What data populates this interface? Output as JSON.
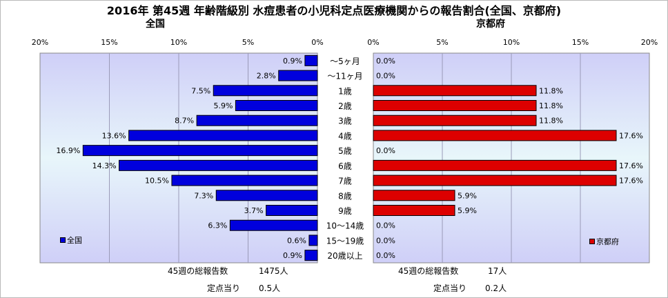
{
  "title": "2016年 第45週 年齢階級別 水痘患者の小児科定点医療機関からの報告割合(全国、京都府)",
  "chart_data": [
    {
      "type": "bar",
      "title": "全国",
      "orientation": "horizontal",
      "direction": "right-to-left",
      "categories": [
        "～5ヶ月",
        "～11ヶ月",
        "1歳",
        "2歳",
        "3歳",
        "4歳",
        "5歳",
        "6歳",
        "7歳",
        "8歳",
        "9歳",
        "10～14歳",
        "15～19歳",
        "20歳以上"
      ],
      "series": [
        {
          "name": "全国",
          "color": "#0000dd",
          "values": [
            0.9,
            2.8,
            7.5,
            5.9,
            8.7,
            13.6,
            16.9,
            14.3,
            10.5,
            7.3,
            3.7,
            6.3,
            0.6,
            0.9
          ],
          "labels": [
            "0.9%",
            "2.8%",
            "7.5%",
            "5.9%",
            "8.7%",
            "13.6%",
            "16.9%",
            "14.3%",
            "10.5%",
            "7.3%",
            "3.7%",
            "6.3%",
            "0.6%",
            "0.9%"
          ]
        }
      ],
      "xlim": [
        0,
        20
      ],
      "ticks": [
        "0%",
        "5%",
        "10%",
        "15%",
        "20%"
      ],
      "grid": true,
      "legend_position": "bottom-left"
    },
    {
      "type": "bar",
      "title": "京都府",
      "orientation": "horizontal",
      "direction": "left-to-right",
      "categories": [
        "～5ヶ月",
        "～11ヶ月",
        "1歳",
        "2歳",
        "3歳",
        "4歳",
        "5歳",
        "6歳",
        "7歳",
        "8歳",
        "9歳",
        "10～14歳",
        "15～19歳",
        "20歳以上"
      ],
      "series": [
        {
          "name": "京都府",
          "color": "#dd0000",
          "values": [
            0.0,
            0.0,
            11.8,
            11.8,
            11.8,
            17.6,
            0.0,
            17.6,
            17.6,
            5.9,
            5.9,
            0.0,
            0.0,
            0.0
          ],
          "labels": [
            "0.0%",
            "0.0%",
            "11.8%",
            "11.8%",
            "11.8%",
            "17.6%",
            "0.0%",
            "17.6%",
            "17.6%",
            "5.9%",
            "5.9%",
            "0.0%",
            "0.0%",
            "0.0%"
          ]
        }
      ],
      "xlim": [
        0,
        20
      ],
      "ticks": [
        "0%",
        "5%",
        "10%",
        "15%",
        "20%"
      ],
      "grid": true,
      "legend_position": "bottom-right"
    }
  ],
  "footer": {
    "left": {
      "total_label": "45週の総報告数",
      "total_value": "1475人",
      "per_label": "定点当り",
      "per_value": "0.5人"
    },
    "right": {
      "total_label": "45週の総報告数",
      "total_value": "17人",
      "per_label": "定点当り",
      "per_value": "0.2人"
    }
  }
}
